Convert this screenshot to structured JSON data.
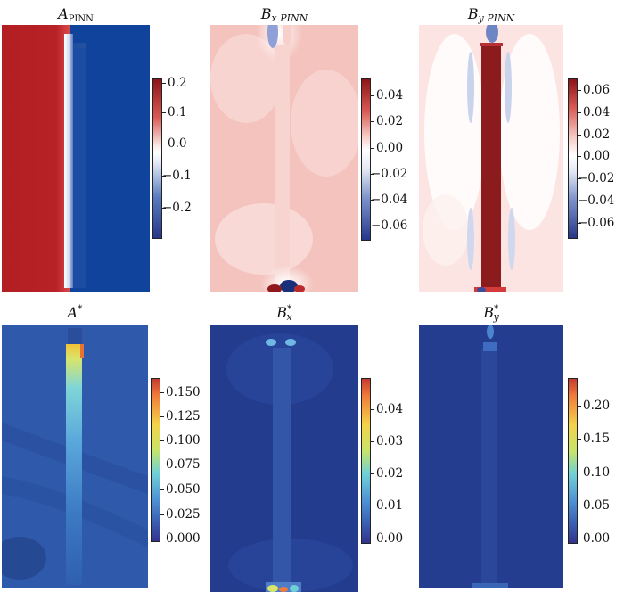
{
  "chart_data": [
    {
      "type": "heatmap",
      "title": "A",
      "title_sub": "PINN",
      "title_sub_style": "upright",
      "title_sup": "",
      "colormap": "diverging-blue-white-red",
      "colorbar_ticks": [
        "0.2",
        "0.1",
        "0.0",
        "−0.1",
        "−0.2"
      ],
      "colorbar_range": [
        -0.29,
        0.22
      ]
    },
    {
      "type": "heatmap",
      "title": "B",
      "title_sub": "x PINN",
      "title_sub_style": "mixed",
      "title_sup": "",
      "colormap": "diverging-blue-white-red",
      "colorbar_ticks": [
        "0.04",
        "0.02",
        "0.00",
        "−0.02",
        "−0.04",
        "−0.06"
      ],
      "colorbar_range": [
        -0.07,
        0.055
      ]
    },
    {
      "type": "heatmap",
      "title": "B",
      "title_sub": "y PINN",
      "title_sub_style": "mixed",
      "title_sup": "",
      "colormap": "diverging-blue-white-red",
      "colorbar_ticks": [
        "0.06",
        "0.04",
        "0.02",
        "0.00",
        "−0.02",
        "−0.04",
        "−0.06"
      ],
      "colorbar_range": [
        -0.07,
        0.07
      ]
    },
    {
      "type": "heatmap",
      "title": "A",
      "title_sub": "",
      "title_sub_style": "",
      "title_sup": "*",
      "colormap": "jet",
      "colorbar_ticks": [
        "0.150",
        "0.125",
        "0.100",
        "0.075",
        "0.050",
        "0.025",
        "0.000"
      ],
      "colorbar_range": [
        0.0,
        0.17
      ]
    },
    {
      "type": "heatmap",
      "title": "B",
      "title_sub": "x",
      "title_sub_style": "italic",
      "title_sup": "*",
      "colormap": "jet",
      "colorbar_ticks": [
        "0.04",
        "0.03",
        "0.02",
        "0.01",
        "0.00"
      ],
      "colorbar_range": [
        0.0,
        0.049
      ]
    },
    {
      "type": "heatmap",
      "title": "B",
      "title_sub": "y",
      "title_sub_style": "italic",
      "title_sup": "*",
      "colormap": "jet",
      "colorbar_ticks": [
        "0.20",
        "0.15",
        "0.10",
        "0.05",
        "0.00"
      ],
      "colorbar_range": [
        0.0,
        0.245
      ]
    }
  ]
}
